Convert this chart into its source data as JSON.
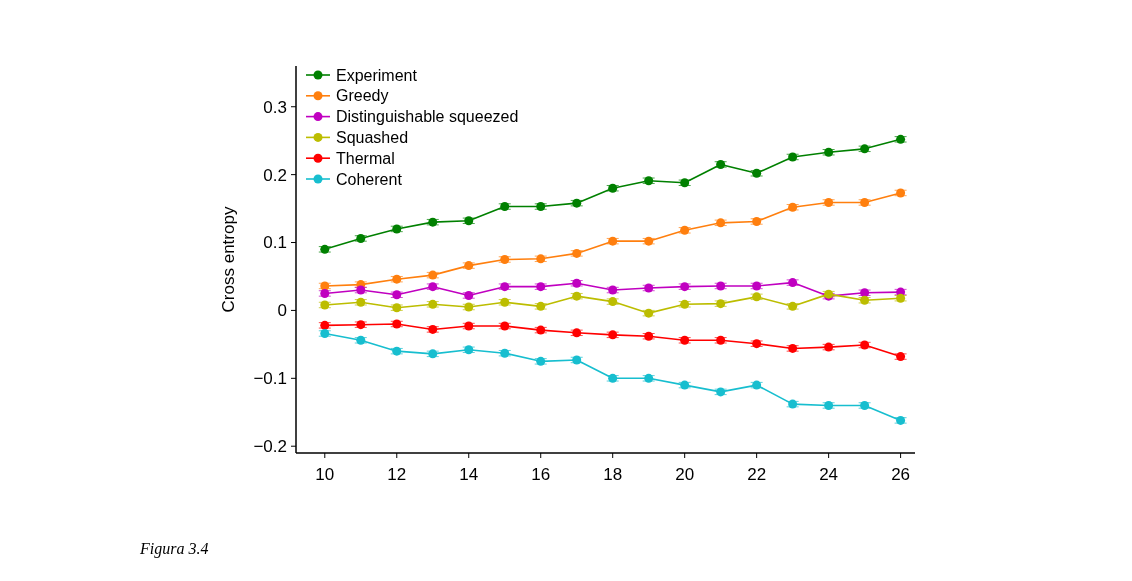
{
  "chart_data": {
    "type": "line",
    "ylabel": "Cross entropy",
    "annotations": [
      "Figura 3.4"
    ],
    "x": [
      10,
      11,
      12,
      13,
      14,
      15,
      16,
      17,
      18,
      19,
      20,
      21,
      22,
      23,
      24,
      25,
      26
    ],
    "xlim": [
      9.2,
      26.4
    ],
    "xticks": [
      10,
      12,
      14,
      16,
      18,
      20,
      22,
      24,
      26
    ],
    "ylim": [
      -0.21,
      0.36
    ],
    "yticks": [
      {
        "value": -0.2,
        "label": "−0.2"
      },
      {
        "value": -0.1,
        "label": "−0.1"
      },
      0,
      0.1,
      0.2,
      0.3
    ],
    "legend": "top left",
    "marker": "circle",
    "line_style": "solid",
    "grid": false,
    "series": [
      {
        "name": "Experiment",
        "color": "#008000",
        "values": [
          0.09,
          0.106,
          0.12,
          0.13,
          0.132,
          0.153,
          0.153,
          0.158,
          0.18,
          0.191,
          0.188,
          0.215,
          0.202,
          0.226,
          0.233,
          0.238,
          0.252
        ],
        "errors": [
          0.004,
          0.004,
          0.004,
          0.004,
          0.004,
          0.004,
          0.004,
          0.004,
          0.004,
          0.004,
          0.004,
          0.004,
          0.004,
          0.004,
          0.004,
          0.004,
          0.004
        ]
      },
      {
        "name": "Greedy",
        "color": "#ff7f0e",
        "values": [
          0.036,
          0.038,
          0.046,
          0.052,
          0.066,
          0.075,
          0.076,
          0.084,
          0.102,
          0.102,
          0.118,
          0.129,
          0.131,
          0.152,
          0.159,
          0.159,
          0.173
        ],
        "errors": [
          0.004,
          0.004,
          0.004,
          0.004,
          0.004,
          0.004,
          0.004,
          0.004,
          0.004,
          0.004,
          0.004,
          0.004,
          0.004,
          0.004,
          0.004,
          0.004,
          0.004
        ]
      },
      {
        "name": "Distinguishable squeezed",
        "color": "#c000c0",
        "values": [
          0.025,
          0.03,
          0.023,
          0.035,
          0.022,
          0.035,
          0.035,
          0.04,
          0.03,
          0.033,
          0.035,
          0.036,
          0.036,
          0.041,
          0.021,
          0.026,
          0.027
        ],
        "errors": [
          0.004,
          0.004,
          0.004,
          0.004,
          0.004,
          0.004,
          0.004,
          0.004,
          0.004,
          0.004,
          0.004,
          0.004,
          0.004,
          0.004,
          0.004,
          0.004,
          0.004
        ]
      },
      {
        "name": "Squashed",
        "color": "#bcbd00",
        "values": [
          0.008,
          0.012,
          0.004,
          0.009,
          0.005,
          0.012,
          0.006,
          0.021,
          0.013,
          -0.004,
          0.009,
          0.01,
          0.02,
          0.006,
          0.024,
          0.015,
          0.018
        ],
        "errors": [
          0.004,
          0.004,
          0.004,
          0.004,
          0.004,
          0.004,
          0.004,
          0.004,
          0.004,
          0.004,
          0.004,
          0.004,
          0.004,
          0.004,
          0.004,
          0.004,
          0.004
        ]
      },
      {
        "name": "Thermal",
        "color": "#ff0000",
        "values": [
          -0.022,
          -0.021,
          -0.02,
          -0.028,
          -0.023,
          -0.023,
          -0.029,
          -0.033,
          -0.036,
          -0.038,
          -0.044,
          -0.044,
          -0.049,
          -0.056,
          -0.054,
          -0.051,
          -0.068
        ],
        "errors": [
          0.004,
          0.004,
          0.004,
          0.004,
          0.004,
          0.004,
          0.004,
          0.004,
          0.004,
          0.004,
          0.004,
          0.004,
          0.004,
          0.004,
          0.004,
          0.004,
          0.004
        ]
      },
      {
        "name": "Coherent",
        "color": "#17becf",
        "values": [
          -0.034,
          -0.044,
          -0.06,
          -0.064,
          -0.058,
          -0.063,
          -0.075,
          -0.073,
          -0.1,
          -0.1,
          -0.11,
          -0.12,
          -0.11,
          -0.138,
          -0.14,
          -0.14,
          -0.162
        ],
        "errors": [
          0.004,
          0.004,
          0.004,
          0.004,
          0.004,
          0.004,
          0.004,
          0.004,
          0.004,
          0.004,
          0.004,
          0.004,
          0.004,
          0.004,
          0.004,
          0.004,
          0.004
        ]
      }
    ]
  }
}
